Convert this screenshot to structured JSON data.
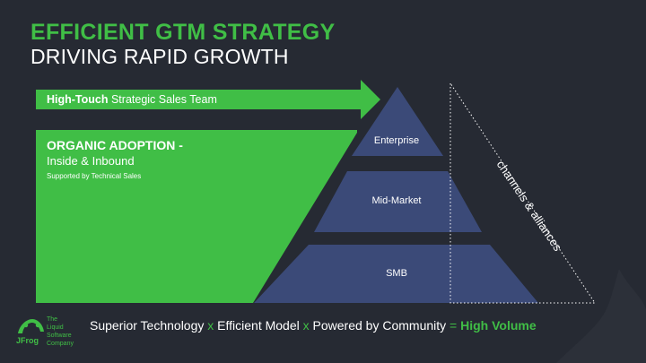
{
  "title": {
    "line1": "EFFICIENT GTM STRATEGY",
    "line2": "DRIVING RAPID GROWTH"
  },
  "arrow": {
    "bold": "High-Touch",
    "rest": " Strategic Sales Team"
  },
  "organic": {
    "title": "ORGANIC ADOPTION -",
    "subtitle": "Inside & Inbound",
    "note": "Supported by Technical Sales"
  },
  "pyramid": {
    "tiers": [
      "Enterprise",
      "Mid-Market",
      "SMB"
    ]
  },
  "channels": "channels & alliances",
  "logo": {
    "name": "JFrog",
    "tagline": [
      "The",
      "Liquid",
      "Software",
      "Company"
    ]
  },
  "footer": {
    "part1": "Superior Technology",
    "op1": " x ",
    "part2": "Efficient Model",
    "op2": " x ",
    "part3": "Powered by Community",
    "op3": " = ",
    "result": "High Volume"
  },
  "colors": {
    "background": "#262a33",
    "accent_green": "#40be46",
    "tier_blue": "#3b4a78",
    "white": "#ffffff"
  }
}
